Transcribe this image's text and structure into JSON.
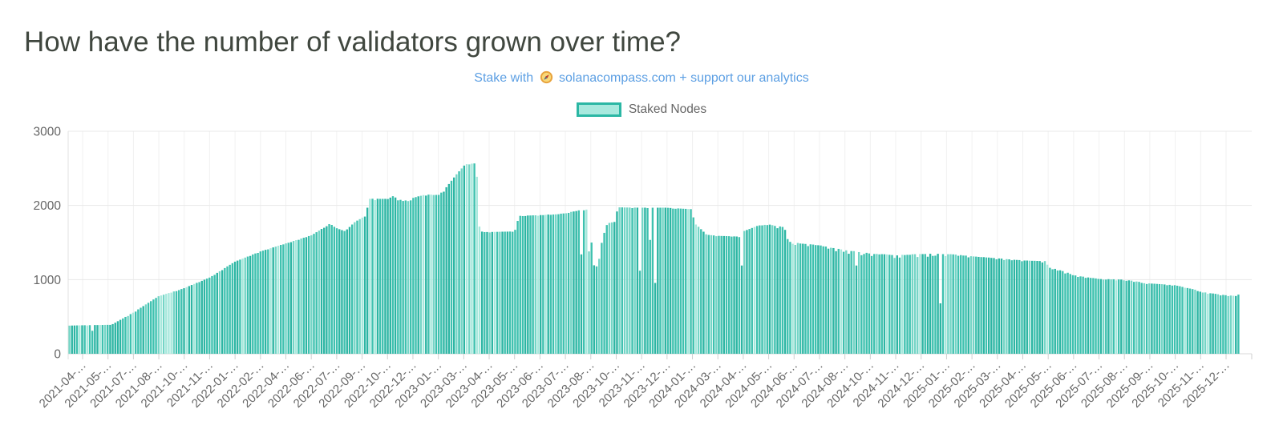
{
  "page": {
    "title": "How have the number of validators grown over time?"
  },
  "promo": {
    "text_before_icon": "Stake with",
    "icon": "compass-icon",
    "text_after_icon": "solanacompass.com + support our analytics",
    "link_color": "#5C9FE3"
  },
  "legend": {
    "label": "Staked Nodes",
    "swatch_fill": "#A8E9DE",
    "swatch_border": "#2BB7A4"
  },
  "chart_data": {
    "type": "bar",
    "title": "",
    "series_name": "Staked Nodes",
    "xlabel": "",
    "ylabel": "",
    "ylim": [
      0,
      3000
    ],
    "yticks": [
      0,
      1000,
      2000,
      3000
    ],
    "grid": true,
    "legend_position": "top",
    "bar_color": "#3EC1AF",
    "bar_color_variants": [
      "#2CB5A3",
      "#74D5C6",
      "#A6E8DC"
    ],
    "n_bars": 460,
    "xtick_labels": [
      "2021-04-…",
      "2021-05-…",
      "2021-07-…",
      "2021-08-…",
      "2021-10-…",
      "2021-11-…",
      "2022-01-…",
      "2022-02-…",
      "2022-04-…",
      "2022-06-…",
      "2022-07-…",
      "2022-09-…",
      "2022-10-…",
      "2022-12-…",
      "2023-01-…",
      "2023-03-…",
      "2023-04-…",
      "2023-05-…",
      "2023-06-…",
      "2023-07-…",
      "2023-08-…",
      "2023-10-…",
      "2023-11-…",
      "2023-12-…",
      "2024-01-…",
      "2024-03-…",
      "2024-04-…",
      "2024-05-…",
      "2024-06-…",
      "2024-07-…",
      "2024-08-…",
      "2024-10-…",
      "2024-11-…",
      "2024-12-…",
      "2025-01-…",
      "2025-02-…",
      "2025-03-…",
      "2025-04-…",
      "2025-05-…",
      "2025-06-…",
      "2025-07-…",
      "2025-08-…",
      "2025-09-…",
      "2025-10-…",
      "2025-11-…",
      "2025-12-…"
    ],
    "trend_anchors": [
      [
        0.0,
        380
      ],
      [
        0.012,
        385
      ],
      [
        0.034,
        390
      ],
      [
        0.038,
        400
      ],
      [
        0.056,
        560
      ],
      [
        0.077,
        775
      ],
      [
        0.099,
        885
      ],
      [
        0.121,
        1030
      ],
      [
        0.142,
        1240
      ],
      [
        0.164,
        1380
      ],
      [
        0.186,
        1490
      ],
      [
        0.208,
        1600
      ],
      [
        0.224,
        1760
      ],
      [
        0.228,
        1700
      ],
      [
        0.236,
        1655
      ],
      [
        0.245,
        1780
      ],
      [
        0.2548,
        1870
      ],
      [
        0.2562,
        2090
      ],
      [
        0.273,
        2090
      ],
      [
        0.276,
        2135
      ],
      [
        0.286,
        2060
      ],
      [
        0.295,
        2105
      ],
      [
        0.305,
        2150
      ],
      [
        0.316,
        2140
      ],
      [
        0.321,
        2210
      ],
      [
        0.332,
        2430
      ],
      [
        0.339,
        2555
      ],
      [
        0.3486,
        2570
      ],
      [
        0.35,
        1750
      ],
      [
        0.3535,
        1640
      ],
      [
        0.381,
        1650
      ],
      [
        0.385,
        1860
      ],
      [
        0.403,
        1870
      ],
      [
        0.425,
        1895
      ],
      [
        0.433,
        1930
      ],
      [
        0.4459,
        1950
      ],
      [
        0.4473,
        1200
      ],
      [
        0.45,
        1190
      ],
      [
        0.452,
        1170
      ],
      [
        0.4534,
        1300
      ],
      [
        0.456,
        1550
      ],
      [
        0.459,
        1700
      ],
      [
        0.4603,
        1760
      ],
      [
        0.467,
        1780
      ],
      [
        0.469,
        1975
      ],
      [
        0.488,
        1970
      ],
      [
        0.51,
        1970
      ],
      [
        0.532,
        1950
      ],
      [
        0.535,
        1755
      ],
      [
        0.539,
        1700
      ],
      [
        0.545,
        1605
      ],
      [
        0.555,
        1590
      ],
      [
        0.574,
        1580
      ],
      [
        0.577,
        1655
      ],
      [
        0.589,
        1730
      ],
      [
        0.598,
        1745
      ],
      [
        0.61,
        1710
      ],
      [
        0.613,
        1660
      ],
      [
        0.615,
        1515
      ],
      [
        0.62,
        1500
      ],
      [
        0.641,
        1465
      ],
      [
        0.663,
        1400
      ],
      [
        0.685,
        1355
      ],
      [
        0.707,
        1330
      ],
      [
        0.728,
        1350
      ],
      [
        0.75,
        1350
      ],
      [
        0.772,
        1315
      ],
      [
        0.793,
        1290
      ],
      [
        0.815,
        1260
      ],
      [
        0.834,
        1250
      ],
      [
        0.837,
        1175
      ],
      [
        0.853,
        1095
      ],
      [
        0.858,
        1060
      ],
      [
        0.88,
        1010
      ],
      [
        0.902,
        1000
      ],
      [
        0.923,
        950
      ],
      [
        0.945,
        925
      ],
      [
        0.962,
        865
      ],
      [
        0.967,
        835
      ],
      [
        0.983,
        800
      ],
      [
        0.989,
        790
      ],
      [
        0.997,
        780
      ],
      [
        1.0,
        810
      ]
    ],
    "dips": [
      [
        0.02,
        310
      ],
      [
        0.438,
        1340
      ],
      [
        0.444,
        1380
      ],
      [
        0.488,
        1120
      ],
      [
        0.496,
        1535
      ],
      [
        0.502,
        955
      ],
      [
        0.574,
        1190
      ],
      [
        0.673,
        1190
      ],
      [
        0.745,
        680
      ]
    ],
    "noise_zones": [
      [
        0.26,
        0.325,
        25
      ],
      [
        0.6,
        0.755,
        45
      ],
      [
        0.755,
        0.88,
        22
      ],
      [
        0.88,
        1.0,
        15
      ]
    ]
  }
}
